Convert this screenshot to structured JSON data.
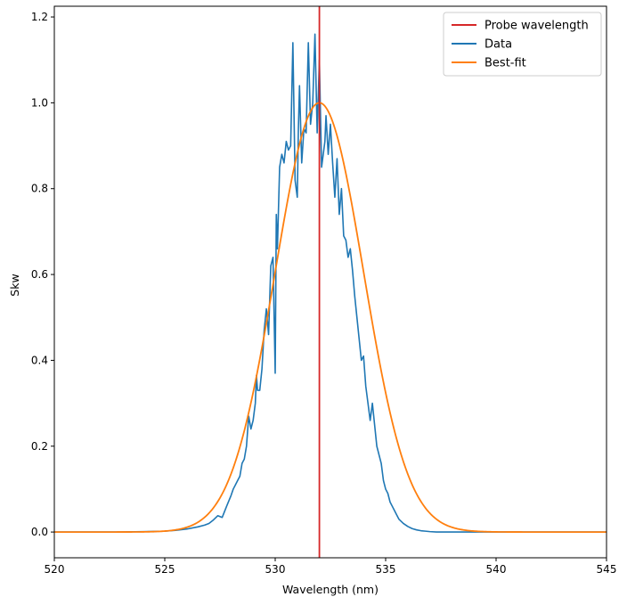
{
  "chart_data": {
    "type": "line",
    "title": "",
    "xlabel": "Wavelength (nm)",
    "ylabel": "Skw",
    "xlim": [
      520,
      545
    ],
    "ylim": [
      -0.06,
      1.225
    ],
    "xticks": [
      520,
      525,
      530,
      535,
      540,
      545
    ],
    "yticks": [
      0.0,
      0.2,
      0.4,
      0.6,
      0.8,
      1.0,
      1.2
    ],
    "xtick_labels": [
      "520",
      "525",
      "530",
      "535",
      "540",
      "545"
    ],
    "ytick_labels": [
      "0.0",
      "0.2",
      "0.4",
      "0.6",
      "0.8",
      "1.0",
      "1.2"
    ],
    "grid": false,
    "legend_position": "top-right",
    "vertical_line": {
      "name": "Probe wavelength",
      "x": 532.0,
      "color": "#d62728"
    },
    "series": [
      {
        "name": "Data",
        "color": "#1f77b4",
        "x": [
          520.0,
          521.0,
          522.0,
          523.0,
          524.0,
          525.0,
          525.5,
          526.0,
          526.5,
          526.8,
          527.0,
          527.2,
          527.4,
          527.6,
          527.8,
          528.0,
          528.1,
          528.2,
          528.3,
          528.4,
          528.5,
          528.6,
          528.7,
          528.8,
          528.9,
          529.0,
          529.1,
          529.15,
          529.2,
          529.3,
          529.4,
          529.5,
          529.6,
          529.7,
          529.8,
          529.9,
          530.0,
          530.05,
          530.1,
          530.2,
          530.3,
          530.4,
          530.5,
          530.6,
          530.7,
          530.8,
          530.9,
          531.0,
          531.05,
          531.1,
          531.2,
          531.3,
          531.4,
          531.5,
          531.6,
          531.7,
          531.8,
          531.9,
          532.0,
          532.1,
          532.2,
          532.25,
          532.3,
          532.4,
          532.5,
          532.6,
          532.7,
          532.8,
          532.9,
          533.0,
          533.1,
          533.2,
          533.3,
          533.4,
          533.5,
          533.6,
          533.7,
          533.8,
          533.9,
          534.0,
          534.1,
          534.2,
          534.3,
          534.4,
          534.5,
          534.6,
          534.7,
          534.8,
          534.9,
          535.0,
          535.1,
          535.2,
          535.3,
          535.4,
          535.5,
          535.6,
          535.8,
          536.0,
          536.2,
          536.4,
          536.6,
          536.8,
          537.0,
          537.3,
          537.6,
          538.0,
          538.5,
          539.0,
          540.0,
          541.0,
          542.0,
          543.0,
          544.0,
          545.0
        ],
        "y": [
          0.0,
          0.0,
          0.0,
          0.0,
          0.001,
          0.002,
          0.004,
          0.007,
          0.012,
          0.016,
          0.02,
          0.028,
          0.038,
          0.034,
          0.06,
          0.085,
          0.1,
          0.11,
          0.12,
          0.13,
          0.16,
          0.17,
          0.2,
          0.27,
          0.24,
          0.26,
          0.3,
          0.365,
          0.33,
          0.33,
          0.38,
          0.47,
          0.52,
          0.46,
          0.62,
          0.64,
          0.37,
          0.74,
          0.66,
          0.85,
          0.88,
          0.86,
          0.91,
          0.89,
          0.9,
          1.14,
          0.82,
          0.78,
          0.94,
          1.04,
          0.86,
          0.94,
          0.93,
          1.14,
          0.95,
          1.0,
          1.16,
          0.93,
          1.1,
          0.85,
          0.89,
          0.91,
          0.97,
          0.88,
          0.95,
          0.86,
          0.78,
          0.87,
          0.74,
          0.8,
          0.69,
          0.68,
          0.64,
          0.66,
          0.61,
          0.55,
          0.5,
          0.45,
          0.4,
          0.41,
          0.34,
          0.3,
          0.26,
          0.3,
          0.25,
          0.2,
          0.18,
          0.16,
          0.12,
          0.1,
          0.09,
          0.07,
          0.06,
          0.05,
          0.04,
          0.03,
          0.02,
          0.013,
          0.008,
          0.005,
          0.003,
          0.002,
          0.001,
          0.0,
          0.0,
          0.0,
          0.0,
          0.0,
          0.0,
          0.0,
          0.0,
          0.0,
          0.0,
          0.0
        ]
      },
      {
        "name": "Best-fit",
        "color": "#ff7f0e",
        "fit": {
          "mu": 532.0,
          "sigma": 2.0,
          "amplitude": 1.0
        }
      }
    ]
  }
}
